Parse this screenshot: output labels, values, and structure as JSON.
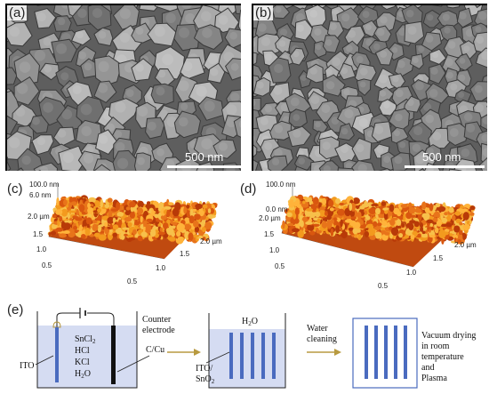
{
  "panels": {
    "a": {
      "label": "(a)",
      "scale_bar": "500 nm"
    },
    "b": {
      "label": "(b)",
      "scale_bar": "500 nm"
    },
    "c": {
      "label": "(c)",
      "z_top": "100.0 nm",
      "z_mid": "6.0 nm",
      "y_ticks": [
        "2.0 µm",
        "1.5",
        "1.0",
        "0.5"
      ],
      "x_ticks": [
        "0.5",
        "1.0",
        "1.5",
        "2.0 µm"
      ]
    },
    "d": {
      "label": "(d)",
      "z_top": "100.0 nm",
      "z_mid": "0.0 nm",
      "y_ticks": [
        "2.0 µm",
        "1.5",
        "1.0",
        "0.5"
      ],
      "x_ticks": [
        "0.5",
        "1.0",
        "1.5",
        "2.0 µm"
      ]
    },
    "e": {
      "label": "(e)",
      "beaker1": {
        "reagents": [
          "SnCl",
          "HCl",
          "KCl",
          "H",
          "O"
        ],
        "sub_sncl": "2",
        "sub_h2o": "2"
      },
      "ito_label": "ITO",
      "counter_label": [
        "Counter",
        "electrode"
      ],
      "ccu_label": "C/Cu",
      "beaker2": {
        "h2o_main": "H",
        "h2o_sub": "2",
        "h2o_end": "O",
        "ito_sno2": [
          "ITO/",
          "SnO",
          "2"
        ]
      },
      "water_cleaning": [
        "Water",
        "cleaning"
      ],
      "final_step": [
        "Vacuum drying",
        "in room",
        "temperature",
        "and",
        "Plasma"
      ]
    }
  },
  "colors": {
    "beaker_fill": "#d5dcf2",
    "electrode_blue": "#4a6bbf",
    "arrow": "#b89a40",
    "sem_gray": "#7a7a7a"
  }
}
